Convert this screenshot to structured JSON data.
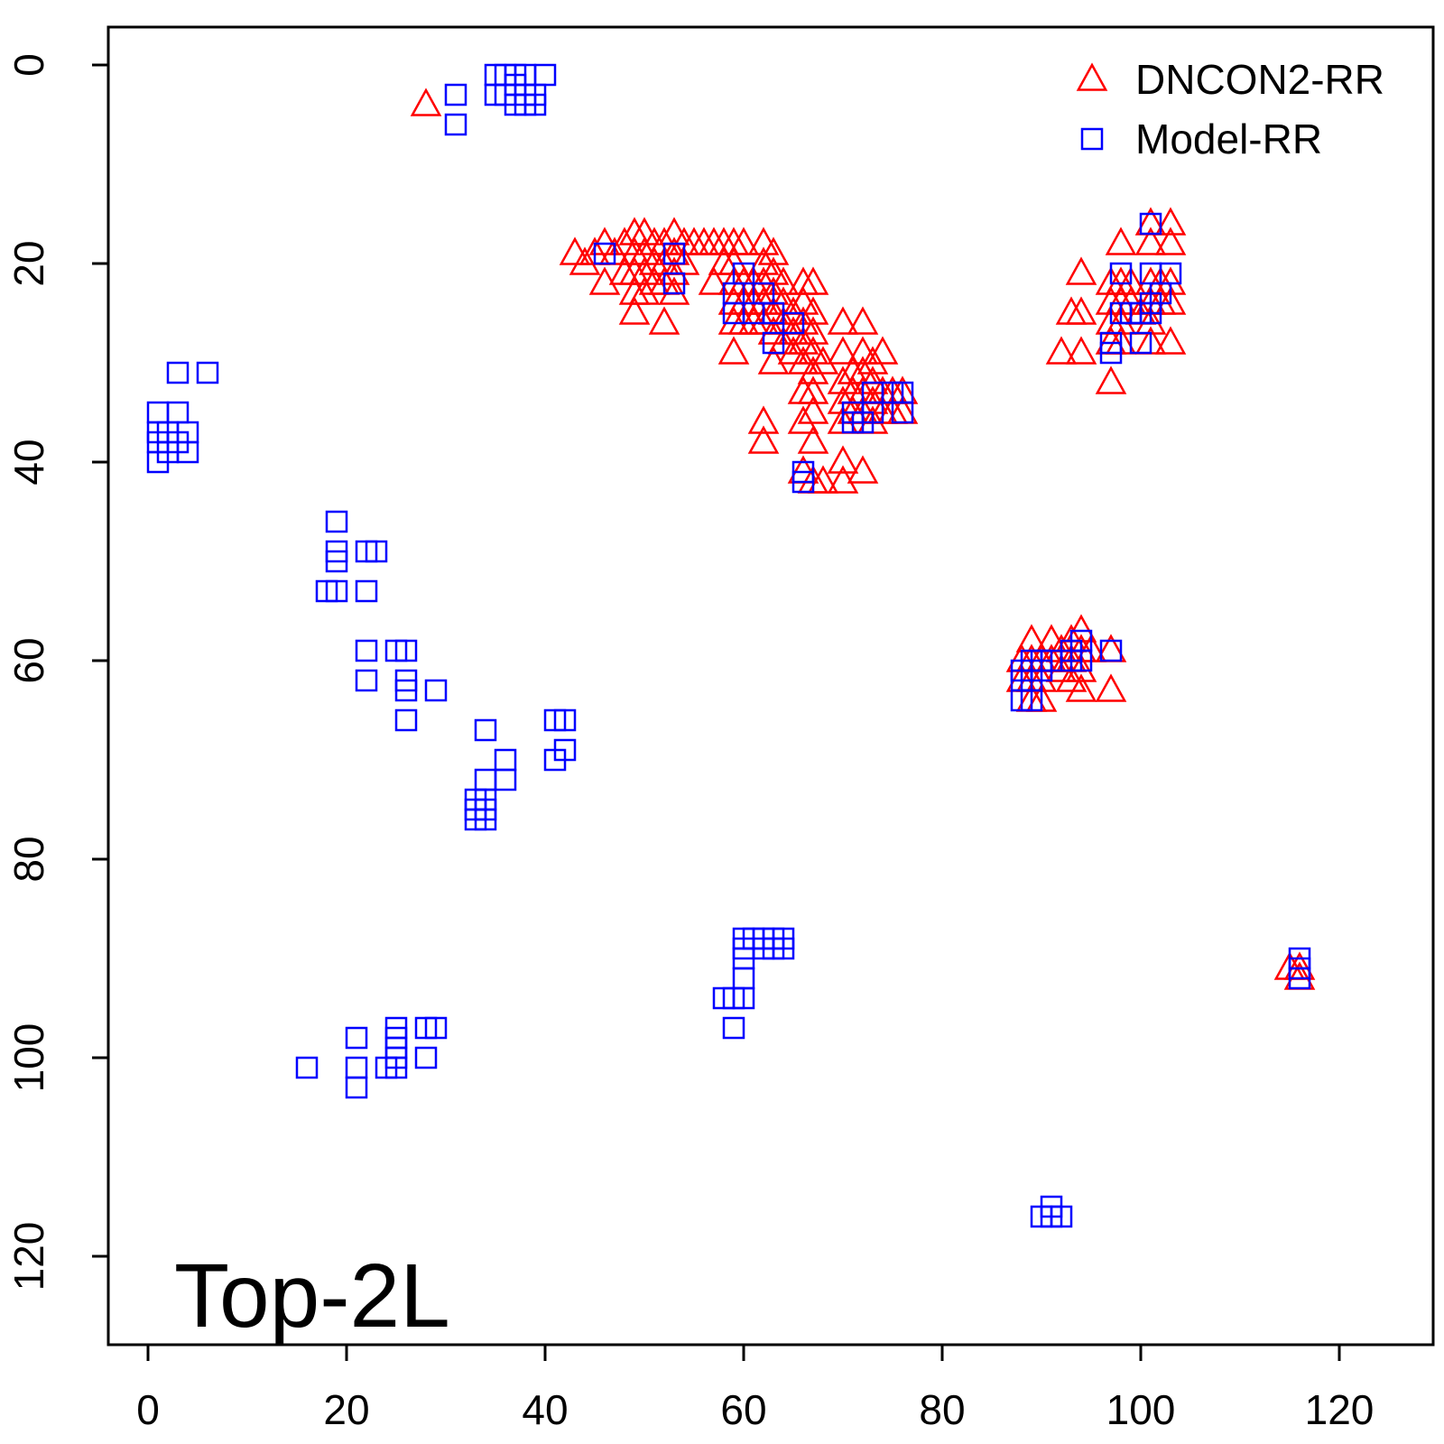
{
  "chart_data": {
    "type": "scatter",
    "title": "",
    "xlabel": "",
    "ylabel": "",
    "annotation": "Top-2L",
    "xlim": [
      -4,
      129
    ],
    "ylim": [
      0,
      130
    ],
    "y_reversed": true,
    "x_ticks": [
      "0",
      "20",
      "40",
      "60",
      "80",
      "100",
      "120"
    ],
    "y_ticks": [
      "0",
      "20",
      "40",
      "60",
      "80",
      "100",
      "120"
    ],
    "legend_position": "top-right",
    "series": [
      {
        "name": "DNCON2-RR",
        "marker": "triangle",
        "color": "#ff0000",
        "points": [
          [
            28,
            4
          ],
          [
            43,
            19
          ],
          [
            44,
            20
          ],
          [
            45,
            19
          ],
          [
            46,
            18
          ],
          [
            46,
            22
          ],
          [
            47,
            19
          ],
          [
            48,
            18
          ],
          [
            48,
            21
          ],
          [
            49,
            17
          ],
          [
            49,
            19
          ],
          [
            49,
            21
          ],
          [
            49,
            23
          ],
          [
            49,
            25
          ],
          [
            50,
            17
          ],
          [
            50,
            19
          ],
          [
            50,
            21
          ],
          [
            50,
            23
          ],
          [
            51,
            18
          ],
          [
            51,
            20
          ],
          [
            51,
            22
          ],
          [
            52,
            18
          ],
          [
            52,
            20
          ],
          [
            52,
            22
          ],
          [
            52,
            26
          ],
          [
            53,
            17
          ],
          [
            53,
            19
          ],
          [
            53,
            21
          ],
          [
            53,
            23
          ],
          [
            54,
            18
          ],
          [
            54,
            20
          ],
          [
            55,
            18
          ],
          [
            56,
            18
          ],
          [
            57,
            18
          ],
          [
            57,
            22
          ],
          [
            58,
            18
          ],
          [
            58,
            20
          ],
          [
            59,
            18
          ],
          [
            59,
            20
          ],
          [
            59,
            22
          ],
          [
            59,
            24
          ],
          [
            59,
            26
          ],
          [
            59,
            29
          ],
          [
            60,
            18
          ],
          [
            60,
            22
          ],
          [
            60,
            24
          ],
          [
            60,
            26
          ],
          [
            61,
            22
          ],
          [
            61,
            24
          ],
          [
            61,
            26
          ],
          [
            62,
            18
          ],
          [
            62,
            20
          ],
          [
            62,
            22
          ],
          [
            62,
            24
          ],
          [
            62,
            26
          ],
          [
            63,
            19
          ],
          [
            63,
            21
          ],
          [
            63,
            23
          ],
          [
            63,
            25
          ],
          [
            63,
            27
          ],
          [
            63,
            30
          ],
          [
            64,
            22
          ],
          [
            64,
            24
          ],
          [
            64,
            26
          ],
          [
            64,
            28
          ],
          [
            65,
            25
          ],
          [
            65,
            27
          ],
          [
            65,
            29
          ],
          [
            66,
            22
          ],
          [
            66,
            24
          ],
          [
            66,
            26
          ],
          [
            66,
            28
          ],
          [
            66,
            30
          ],
          [
            66,
            33
          ],
          [
            66,
            36
          ],
          [
            66,
            41
          ],
          [
            67,
            22
          ],
          [
            67,
            25
          ],
          [
            67,
            27
          ],
          [
            67,
            29
          ],
          [
            67,
            31
          ],
          [
            67,
            33
          ],
          [
            67,
            35
          ],
          [
            67,
            38
          ],
          [
            67,
            42
          ],
          [
            68,
            30
          ],
          [
            68,
            42
          ],
          [
            70,
            26
          ],
          [
            70,
            29
          ],
          [
            70,
            32
          ],
          [
            70,
            34
          ],
          [
            70,
            36
          ],
          [
            70,
            40
          ],
          [
            70,
            42
          ],
          [
            71,
            31
          ],
          [
            71,
            33
          ],
          [
            71,
            35
          ],
          [
            72,
            26
          ],
          [
            72,
            29
          ],
          [
            72,
            31
          ],
          [
            72,
            33
          ],
          [
            72,
            35
          ],
          [
            72,
            41
          ],
          [
            73,
            30
          ],
          [
            73,
            32
          ],
          [
            73,
            34
          ],
          [
            73,
            36
          ],
          [
            74,
            29
          ],
          [
            74,
            33
          ],
          [
            74,
            35
          ],
          [
            75,
            33
          ],
          [
            75,
            35
          ],
          [
            76,
            33
          ],
          [
            76,
            35
          ],
          [
            62,
            36
          ],
          [
            62,
            38
          ],
          [
            94,
            21
          ],
          [
            94,
            25
          ],
          [
            94,
            29
          ],
          [
            93,
            25
          ],
          [
            92,
            29
          ],
          [
            97,
            22
          ],
          [
            97,
            24
          ],
          [
            97,
            26
          ],
          [
            97,
            28
          ],
          [
            97,
            32
          ],
          [
            98,
            18
          ],
          [
            98,
            22
          ],
          [
            98,
            24
          ],
          [
            98,
            26
          ],
          [
            98,
            28
          ],
          [
            99,
            22
          ],
          [
            99,
            24
          ],
          [
            100,
            25
          ],
          [
            101,
            16
          ],
          [
            101,
            18
          ],
          [
            101,
            22
          ],
          [
            101,
            24
          ],
          [
            101,
            26
          ],
          [
            101,
            28
          ],
          [
            102,
            22
          ],
          [
            102,
            24
          ],
          [
            103,
            16
          ],
          [
            103,
            18
          ],
          [
            103,
            22
          ],
          [
            103,
            24
          ],
          [
            103,
            28
          ],
          [
            88,
            60
          ],
          [
            88,
            62
          ],
          [
            89,
            58
          ],
          [
            89,
            60
          ],
          [
            89,
            62
          ],
          [
            89,
            64
          ],
          [
            90,
            60
          ],
          [
            90,
            62
          ],
          [
            90,
            64
          ],
          [
            91,
            58
          ],
          [
            91,
            60
          ],
          [
            92,
            59
          ],
          [
            92,
            61
          ],
          [
            93,
            58
          ],
          [
            93,
            60
          ],
          [
            93,
            62
          ],
          [
            94,
            57
          ],
          [
            94,
            59
          ],
          [
            94,
            61
          ],
          [
            94,
            63
          ],
          [
            95,
            59
          ],
          [
            97,
            59
          ],
          [
            97,
            63
          ],
          [
            115,
            91
          ],
          [
            116,
            91
          ],
          [
            116,
            92
          ]
        ]
      },
      {
        "name": "Model-RR",
        "marker": "square",
        "color": "#0000ff",
        "points": [
          [
            31,
            3
          ],
          [
            31,
            6
          ],
          [
            35,
            1
          ],
          [
            35,
            3
          ],
          [
            36,
            1
          ],
          [
            36,
            3
          ],
          [
            37,
            1
          ],
          [
            37,
            2
          ],
          [
            37,
            4
          ],
          [
            38,
            1
          ],
          [
            38,
            3
          ],
          [
            38,
            4
          ],
          [
            39,
            3
          ],
          [
            39,
            4
          ],
          [
            40,
            1
          ],
          [
            1,
            35
          ],
          [
            1,
            37
          ],
          [
            1,
            38
          ],
          [
            1,
            40
          ],
          [
            2,
            37
          ],
          [
            2,
            39
          ],
          [
            3,
            31
          ],
          [
            3,
            35
          ],
          [
            3,
            38
          ],
          [
            4,
            37
          ],
          [
            4,
            39
          ],
          [
            6,
            31
          ],
          [
            19,
            46
          ],
          [
            19,
            49
          ],
          [
            19,
            50
          ],
          [
            19,
            53
          ],
          [
            18,
            53
          ],
          [
            22,
            49
          ],
          [
            22,
            53
          ],
          [
            23,
            49
          ],
          [
            22,
            59
          ],
          [
            22,
            62
          ],
          [
            25,
            59
          ],
          [
            26,
            59
          ],
          [
            26,
            62
          ],
          [
            26,
            63
          ],
          [
            26,
            66
          ],
          [
            29,
            63
          ],
          [
            34,
            67
          ],
          [
            34,
            72
          ],
          [
            33,
            74
          ],
          [
            33,
            75
          ],
          [
            33,
            76
          ],
          [
            34,
            74
          ],
          [
            34,
            75
          ],
          [
            34,
            76
          ],
          [
            36,
            70
          ],
          [
            36,
            72
          ],
          [
            41,
            66
          ],
          [
            41,
            70
          ],
          [
            42,
            66
          ],
          [
            42,
            69
          ],
          [
            16,
            101
          ],
          [
            21,
            98
          ],
          [
            21,
            101
          ],
          [
            21,
            103
          ],
          [
            24,
            101
          ],
          [
            25,
            97
          ],
          [
            25,
            98
          ],
          [
            25,
            99
          ],
          [
            25,
            100
          ],
          [
            25,
            101
          ],
          [
            28,
            97
          ],
          [
            28,
            100
          ],
          [
            29,
            97
          ],
          [
            58,
            94
          ],
          [
            59,
            94
          ],
          [
            59,
            97
          ],
          [
            60,
            88
          ],
          [
            60,
            89
          ],
          [
            60,
            90
          ],
          [
            60,
            92
          ],
          [
            60,
            94
          ],
          [
            61,
            88
          ],
          [
            62,
            88
          ],
          [
            62,
            89
          ],
          [
            63,
            88
          ],
          [
            63,
            89
          ],
          [
            64,
            88
          ],
          [
            64,
            89
          ],
          [
            46,
            19
          ],
          [
            53,
            22
          ],
          [
            53,
            19
          ],
          [
            59,
            23
          ],
          [
            59,
            25
          ],
          [
            60,
            21
          ],
          [
            61,
            25
          ],
          [
            62,
            23
          ],
          [
            63,
            25
          ],
          [
            63,
            28
          ],
          [
            65,
            26
          ],
          [
            66,
            41
          ],
          [
            66,
            42
          ],
          [
            71,
            35
          ],
          [
            71,
            36
          ],
          [
            72,
            36
          ],
          [
            73,
            33
          ],
          [
            73,
            35
          ],
          [
            75,
            33
          ],
          [
            76,
            33
          ],
          [
            76,
            35
          ],
          [
            97,
            28
          ],
          [
            97,
            29
          ],
          [
            98,
            21
          ],
          [
            98,
            25
          ],
          [
            99,
            25
          ],
          [
            100,
            25
          ],
          [
            100,
            28
          ],
          [
            101,
            16
          ],
          [
            101,
            21
          ],
          [
            101,
            24
          ],
          [
            101,
            25
          ],
          [
            102,
            23
          ],
          [
            103,
            21
          ],
          [
            88,
            61
          ],
          [
            88,
            62
          ],
          [
            88,
            64
          ],
          [
            89,
            60
          ],
          [
            89,
            62
          ],
          [
            89,
            64
          ],
          [
            90,
            60
          ],
          [
            90,
            61
          ],
          [
            91,
            60
          ],
          [
            93,
            59
          ],
          [
            93,
            60
          ],
          [
            94,
            58
          ],
          [
            94,
            60
          ],
          [
            97,
            59
          ],
          [
            90,
            116
          ],
          [
            91,
            116
          ],
          [
            91,
            115
          ],
          [
            92,
            116
          ],
          [
            116,
            90
          ],
          [
            116,
            91
          ],
          [
            116,
            92
          ]
        ]
      }
    ]
  }
}
